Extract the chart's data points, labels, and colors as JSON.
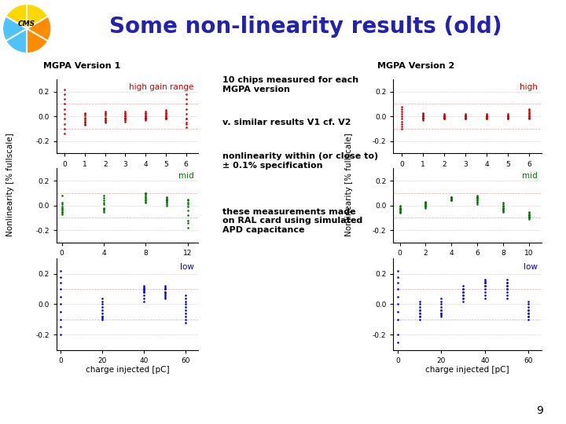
{
  "title": "Some non-linearity results (old)",
  "title_color": "#2222aa",
  "title_fontsize": 20,
  "bg_color": "#ffffff",
  "header_line_color": "#2233aa",
  "v1_label": "MGPA Version 1",
  "v2_label": "MGPA Version 2",
  "high_label_v1": "high gain range",
  "mid_label_v1": "mid",
  "low_label_v1": "low",
  "high_label_v2": "high",
  "mid_label_v2": "mid",
  "low_label_v2": "low",
  "xlabel": "charge injected [pC]",
  "ylabel": "Nonlinearity [% fullscale]",
  "red_color": "#cc0000",
  "green_color": "#007700",
  "blue_color": "#0000cc",
  "annotations": [
    "10 chips measured for each\nMGPA version",
    "v. similar results V1 cf. V2",
    "nonlinearity within (or close to)\n± 0.1% specification",
    "these measurements made\non RAL card using simulated\nAPD capacitance"
  ],
  "v1_high_x": [
    0,
    0,
    0,
    0,
    0,
    0,
    0,
    0,
    0,
    0,
    1,
    1,
    1,
    1,
    1,
    1,
    1,
    1,
    1,
    1,
    2,
    2,
    2,
    2,
    2,
    2,
    2,
    2,
    2,
    2,
    3,
    3,
    3,
    3,
    3,
    3,
    3,
    3,
    3,
    3,
    4,
    4,
    4,
    4,
    4,
    4,
    4,
    4,
    4,
    4,
    5,
    5,
    5,
    5,
    5,
    5,
    5,
    5,
    5,
    5,
    6,
    6,
    6,
    6,
    6,
    6,
    6,
    6,
    6,
    6
  ],
  "v1_high_y": [
    0.22,
    0.18,
    0.14,
    0.1,
    0.06,
    0.02,
    -0.02,
    -0.06,
    -0.1,
    -0.14,
    -0.02,
    -0.04,
    -0.06,
    -0.07,
    -0.05,
    -0.03,
    -0.01,
    0.01,
    0.02,
    0.03,
    -0.03,
    -0.04,
    -0.05,
    -0.03,
    -0.02,
    -0.01,
    0.01,
    0.02,
    0.03,
    0.04,
    -0.02,
    -0.03,
    -0.04,
    -0.02,
    -0.01,
    0.0,
    0.01,
    0.02,
    0.03,
    0.04,
    -0.01,
    -0.02,
    -0.03,
    -0.02,
    -0.01,
    0.0,
    0.01,
    0.02,
    0.03,
    0.04,
    -0.01,
    -0.02,
    -0.02,
    -0.01,
    0.0,
    0.01,
    0.02,
    0.03,
    0.04,
    0.05,
    0.18,
    0.14,
    0.1,
    0.06,
    0.02,
    -0.02,
    -0.06,
    -0.09,
    -0.05,
    -0.02
  ],
  "v1_mid_x": [
    0,
    0,
    0,
    0,
    0,
    0,
    0,
    0,
    0,
    0,
    4,
    4,
    4,
    4,
    4,
    4,
    4,
    4,
    4,
    4,
    8,
    8,
    8,
    8,
    8,
    8,
    8,
    8,
    8,
    8,
    10,
    10,
    10,
    10,
    10,
    10,
    10,
    10,
    10,
    10,
    12,
    12,
    12,
    12,
    12,
    12,
    12,
    12,
    12,
    12
  ],
  "v1_mid_y": [
    -0.02,
    -0.04,
    -0.06,
    -0.07,
    -0.05,
    -0.03,
    -0.01,
    0.01,
    0.02,
    0.08,
    -0.03,
    -0.04,
    -0.05,
    -0.03,
    -0.02,
    0.01,
    0.02,
    0.04,
    0.06,
    0.08,
    0.02,
    0.03,
    0.04,
    0.05,
    0.06,
    0.07,
    0.08,
    0.09,
    0.1,
    0.1,
    0.04,
    0.05,
    0.06,
    0.07,
    0.05,
    0.04,
    0.03,
    0.02,
    0.01,
    0.0,
    -0.18,
    -0.14,
    -0.12,
    -0.08,
    -0.04,
    -0.01,
    0.01,
    0.02,
    0.04,
    0.05
  ],
  "v1_low_x": [
    0,
    0,
    0,
    0,
    0,
    0,
    0,
    0,
    0,
    0,
    20,
    20,
    20,
    20,
    20,
    20,
    20,
    20,
    20,
    20,
    40,
    40,
    40,
    40,
    40,
    40,
    40,
    40,
    40,
    40,
    50,
    50,
    50,
    50,
    50,
    50,
    50,
    50,
    50,
    50,
    60,
    60,
    60,
    60,
    60,
    60,
    60,
    60,
    60,
    60
  ],
  "v1_low_y": [
    0.22,
    0.18,
    0.14,
    0.1,
    0.05,
    0.0,
    -0.05,
    -0.1,
    -0.15,
    -0.2,
    -0.08,
    -0.09,
    -0.1,
    -0.08,
    -0.06,
    -0.04,
    -0.02,
    0.0,
    0.02,
    0.04,
    0.08,
    0.09,
    0.1,
    0.11,
    0.12,
    0.1,
    0.08,
    0.06,
    0.04,
    0.02,
    0.08,
    0.1,
    0.11,
    0.12,
    0.1,
    0.08,
    0.07,
    0.06,
    0.05,
    0.04,
    0.06,
    0.04,
    0.02,
    0.0,
    -0.02,
    -0.04,
    -0.06,
    -0.08,
    -0.1,
    -0.12
  ],
  "v2_high_x": [
    0,
    0,
    0,
    0,
    0,
    0,
    0,
    0,
    0,
    0,
    1,
    1,
    1,
    1,
    1,
    1,
    1,
    1,
    1,
    1,
    2,
    2,
    2,
    2,
    2,
    2,
    2,
    2,
    2,
    2,
    3,
    3,
    3,
    3,
    3,
    3,
    3,
    3,
    3,
    3,
    4,
    4,
    4,
    4,
    4,
    4,
    4,
    4,
    4,
    4,
    5,
    5,
    5,
    5,
    5,
    5,
    5,
    5,
    5,
    5,
    6,
    6,
    6,
    6,
    6,
    6,
    6,
    6,
    6,
    6
  ],
  "v2_high_y": [
    0.08,
    0.06,
    0.04,
    0.02,
    0.0,
    -0.02,
    -0.04,
    -0.06,
    -0.08,
    -0.1,
    -0.01,
    -0.02,
    -0.03,
    -0.02,
    -0.01,
    0.0,
    0.01,
    0.02,
    0.03,
    0.01,
    -0.01,
    -0.02,
    -0.01,
    0.0,
    0.01,
    0.02,
    0.01,
    0.0,
    -0.01,
    -0.02,
    -0.01,
    -0.02,
    -0.01,
    0.0,
    0.01,
    0.02,
    0.01,
    0.0,
    -0.01,
    -0.02,
    -0.01,
    -0.02,
    -0.01,
    0.0,
    0.01,
    0.02,
    0.01,
    0.0,
    -0.01,
    -0.02,
    -0.01,
    -0.02,
    -0.01,
    0.0,
    0.01,
    0.02,
    0.01,
    0.0,
    -0.01,
    -0.02,
    0.06,
    0.05,
    0.04,
    0.03,
    0.02,
    0.01,
    0.0,
    -0.01,
    -0.02,
    -0.01
  ],
  "v2_mid_x": [
    0,
    0,
    0,
    0,
    0,
    0,
    0,
    0,
    0,
    0,
    2,
    2,
    2,
    2,
    2,
    2,
    2,
    2,
    2,
    2,
    4,
    4,
    4,
    4,
    4,
    4,
    4,
    4,
    4,
    4,
    6,
    6,
    6,
    6,
    6,
    6,
    6,
    6,
    6,
    6,
    8,
    8,
    8,
    8,
    8,
    8,
    8,
    8,
    8,
    8,
    10,
    10,
    10,
    10,
    10,
    10,
    10,
    10,
    10,
    10
  ],
  "v2_mid_y": [
    -0.03,
    -0.04,
    -0.05,
    -0.06,
    -0.05,
    -0.04,
    -0.03,
    -0.02,
    -0.01,
    0.0,
    -0.01,
    -0.02,
    -0.01,
    0.0,
    0.01,
    0.02,
    0.03,
    0.02,
    0.01,
    0.0,
    0.04,
    0.05,
    0.06,
    0.07,
    0.06,
    0.05,
    0.04,
    0.05,
    0.06,
    0.07,
    0.06,
    0.07,
    0.08,
    0.07,
    0.06,
    0.05,
    0.04,
    0.03,
    0.02,
    0.01,
    0.02,
    0.01,
    0.0,
    -0.01,
    -0.02,
    -0.03,
    -0.04,
    -0.05,
    -0.04,
    -0.03,
    -0.08,
    -0.09,
    -0.1,
    -0.11,
    -0.1,
    -0.09,
    -0.08,
    -0.07,
    -0.06,
    -0.05
  ],
  "v2_low_x": [
    0,
    0,
    0,
    0,
    0,
    0,
    0,
    0,
    0,
    0,
    10,
    10,
    10,
    10,
    10,
    10,
    10,
    10,
    10,
    10,
    20,
    20,
    20,
    20,
    20,
    20,
    20,
    20,
    20,
    20,
    30,
    30,
    30,
    30,
    30,
    30,
    30,
    30,
    30,
    30,
    40,
    40,
    40,
    40,
    40,
    40,
    40,
    40,
    40,
    40,
    50,
    50,
    50,
    50,
    50,
    50,
    50,
    50,
    50,
    50,
    60,
    60,
    60,
    60,
    60,
    60,
    60,
    60,
    60,
    60
  ],
  "v2_low_y": [
    0.22,
    0.18,
    0.14,
    0.1,
    0.05,
    0.0,
    -0.05,
    -0.1,
    -0.2,
    -0.25,
    -0.04,
    -0.06,
    -0.08,
    -0.1,
    -0.08,
    -0.06,
    -0.04,
    -0.02,
    0.0,
    0.02,
    -0.04,
    -0.06,
    -0.07,
    -0.08,
    -0.06,
    -0.04,
    -0.02,
    0.0,
    0.02,
    0.04,
    0.02,
    0.04,
    0.06,
    0.08,
    0.1,
    0.12,
    0.1,
    0.08,
    0.06,
    0.04,
    0.12,
    0.14,
    0.15,
    0.16,
    0.14,
    0.12,
    0.1,
    0.08,
    0.06,
    0.04,
    0.1,
    0.12,
    0.14,
    0.16,
    0.14,
    0.12,
    0.1,
    0.08,
    0.06,
    0.04,
    -0.04,
    -0.06,
    -0.08,
    -0.1,
    -0.08,
    -0.06,
    -0.04,
    -0.02,
    0.0,
    0.02
  ],
  "page_number": "9"
}
